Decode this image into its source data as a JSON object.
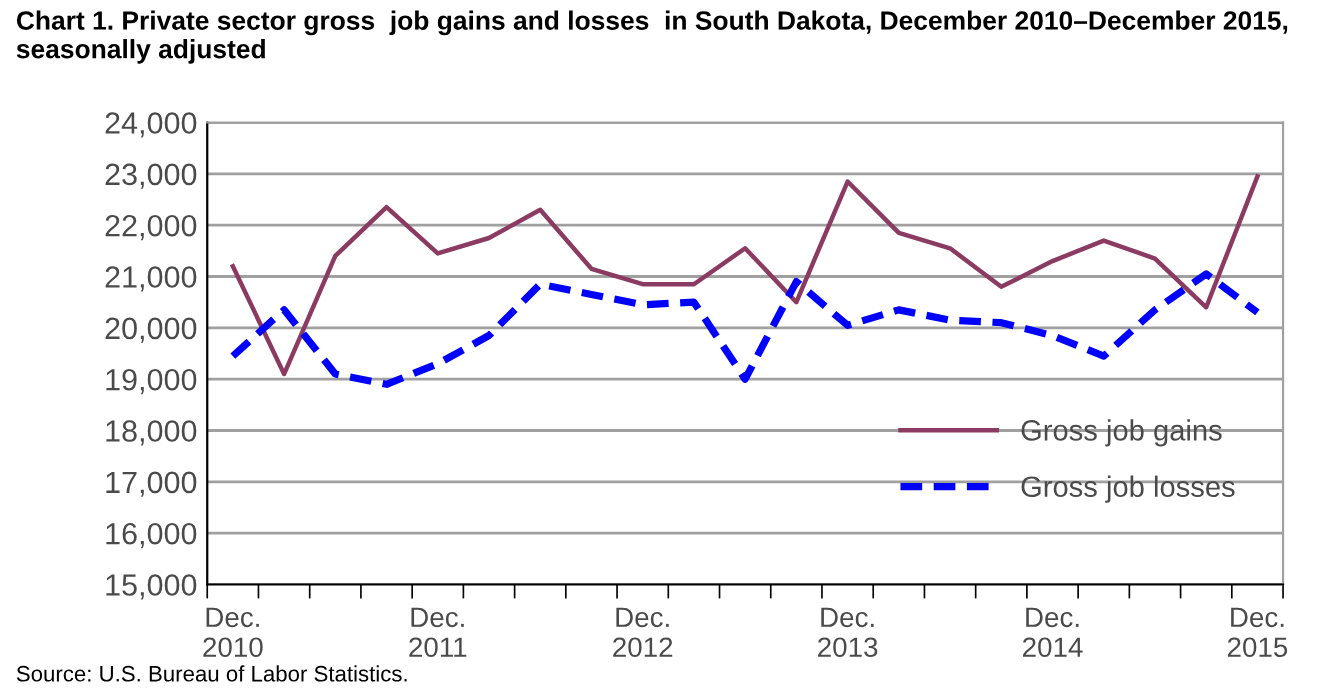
{
  "chart_data": {
    "type": "line",
    "title": "Chart 1. Private sector gross  job gains and losses  in South Dakota, December 2010–December 2015,\nseasonally adjusted",
    "categories": [
      "Dec.\n2010",
      null,
      null,
      null,
      "Dec.\n2011",
      null,
      null,
      null,
      "Dec.\n2012",
      null,
      null,
      null,
      "Dec.\n2013",
      null,
      null,
      null,
      "Dec.\n2014",
      null,
      null,
      null,
      "Dec.\n2015"
    ],
    "series": [
      {
        "name": "Gross job gains",
        "color": "#8b3a62",
        "line_style": "solid",
        "values": [
          21200,
          19100,
          21400,
          22350,
          21450,
          21750,
          22300,
          21150,
          20850,
          20850,
          21550,
          20500,
          22850,
          21850,
          21550,
          20800,
          21300,
          21700,
          21350,
          20400,
          22950
        ]
      },
      {
        "name": "Gross job losses",
        "color": "#0000ff",
        "line_style": "dashed",
        "values": [
          19450,
          20350,
          19100,
          18900,
          19300,
          19850,
          20850,
          20650,
          20450,
          20500,
          19000,
          20900,
          20050,
          20350,
          20150,
          20100,
          19850,
          19450,
          20350,
          21050,
          20300
        ]
      }
    ],
    "ylim": [
      15000,
      24000
    ],
    "yticks": [
      {
        "value": 15000,
        "label": "15,000"
      },
      {
        "value": 16000,
        "label": "16,000"
      },
      {
        "value": 17000,
        "label": "17,000"
      },
      {
        "value": 18000,
        "label": "18,000"
      },
      {
        "value": 19000,
        "label": "19,000"
      },
      {
        "value": 20000,
        "label": "20,000"
      },
      {
        "value": 21000,
        "label": "21,000"
      },
      {
        "value": 22000,
        "label": "22,000"
      },
      {
        "value": 23000,
        "label": "23,000"
      },
      {
        "value": 24000,
        "label": "24,000"
      }
    ],
    "grid": "y",
    "legend": "right",
    "marker": "none",
    "annotations": [
      "Source: U.S. Bureau of Labor Statistics."
    ]
  }
}
